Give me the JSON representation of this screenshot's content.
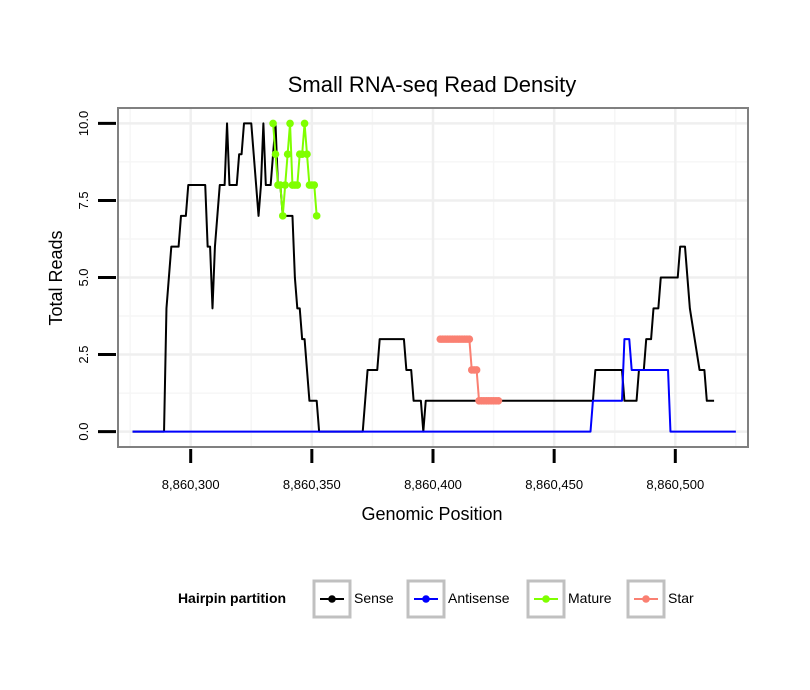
{
  "chart_data": {
    "type": "line",
    "title": "Small RNA-seq Read Density",
    "xlabel": "Genomic Position",
    "ylabel": "Total Reads",
    "xlim": [
      8860270,
      8860530
    ],
    "ylim": [
      -0.5,
      10.5
    ],
    "x_ticks": [
      8860300,
      8860350,
      8860400,
      8860450,
      8860500
    ],
    "x_tick_labels": [
      "8,860,300",
      "8,860,350",
      "8,860,400",
      "8,860,450",
      "8,860,500"
    ],
    "y_ticks": [
      0,
      2.5,
      5,
      7.5,
      10
    ],
    "y_tick_labels": [
      "0.0",
      "2.5",
      "5.0",
      "7.5",
      "10.0"
    ],
    "grid": true,
    "legend": {
      "title": "Hairpin partition",
      "position": "bottom",
      "entries": [
        "Sense",
        "Antisense",
        "Mature",
        "Star"
      ]
    },
    "series": [
      {
        "name": "Sense",
        "color": "#000000",
        "show_points": false,
        "points": [
          [
            8860276,
            0
          ],
          [
            8860289,
            0
          ],
          [
            8860290,
            4
          ],
          [
            8860291,
            5
          ],
          [
            8860292,
            6
          ],
          [
            8860295,
            6
          ],
          [
            8860296,
            7
          ],
          [
            8860298,
            7
          ],
          [
            8860299,
            8
          ],
          [
            8860306,
            8
          ],
          [
            8860307,
            6
          ],
          [
            8860308,
            6
          ],
          [
            8860309,
            4
          ],
          [
            8860310,
            6
          ],
          [
            8860311,
            7
          ],
          [
            8860312,
            8
          ],
          [
            8860314,
            8
          ],
          [
            8860315,
            10
          ],
          [
            8860316,
            8
          ],
          [
            8860319,
            8
          ],
          [
            8860320,
            9
          ],
          [
            8860321,
            9
          ],
          [
            8860322,
            10
          ],
          [
            8860325,
            10
          ],
          [
            8860326,
            9
          ],
          [
            8860327,
            8
          ],
          [
            8860328,
            7
          ],
          [
            8860329,
            8
          ],
          [
            8860330,
            10
          ],
          [
            8860331,
            8
          ],
          [
            8860333,
            8
          ],
          [
            8860334,
            9
          ],
          [
            8860335,
            10
          ],
          [
            8860336,
            8
          ],
          [
            8860337,
            8
          ],
          [
            8860338,
            7
          ],
          [
            8860342,
            7
          ],
          [
            8860343,
            5
          ],
          [
            8860344,
            4
          ],
          [
            8860345,
            4
          ],
          [
            8860346,
            3
          ],
          [
            8860347,
            3
          ],
          [
            8860348,
            2
          ],
          [
            8860349,
            1
          ],
          [
            8860352,
            1
          ],
          [
            8860353,
            0
          ],
          [
            8860371,
            0
          ],
          [
            8860372,
            1
          ],
          [
            8860373,
            2
          ],
          [
            8860377,
            2
          ],
          [
            8860378,
            3
          ],
          [
            8860388,
            3
          ],
          [
            8860389,
            2
          ],
          [
            8860391,
            2
          ],
          [
            8860392,
            1
          ],
          [
            8860395,
            1
          ],
          [
            8860396,
            0
          ],
          [
            8860397,
            1
          ],
          [
            8860466,
            1
          ],
          [
            8860467,
            2
          ],
          [
            8860478,
            2
          ],
          [
            8860479,
            1
          ],
          [
            8860484,
            1
          ],
          [
            8860485,
            2
          ],
          [
            8860487,
            2
          ],
          [
            8860488,
            3
          ],
          [
            8860490,
            3
          ],
          [
            8860491,
            4
          ],
          [
            8860493,
            4
          ],
          [
            8860494,
            5
          ],
          [
            8860501,
            5
          ],
          [
            8860502,
            6
          ],
          [
            8860504,
            6
          ],
          [
            8860505,
            5
          ],
          [
            8860506,
            4
          ],
          [
            8860508,
            3
          ],
          [
            8860510,
            2
          ],
          [
            8860512,
            2
          ],
          [
            8860513,
            1
          ],
          [
            8860516,
            1
          ]
        ]
      },
      {
        "name": "Antisense",
        "color": "#0000ff",
        "show_points": false,
        "points": [
          [
            8860276,
            0
          ],
          [
            8860465,
            0
          ],
          [
            8860466,
            1
          ],
          [
            8860478,
            1
          ],
          [
            8860479,
            3
          ],
          [
            8860481,
            3
          ],
          [
            8860482,
            2
          ],
          [
            8860497,
            2
          ],
          [
            8860498,
            0
          ],
          [
            8860525,
            0
          ]
        ]
      },
      {
        "name": "Mature",
        "color": "#7fff00",
        "show_points": true,
        "points": [
          [
            8860334,
            10
          ],
          [
            8860335,
            9
          ],
          [
            8860336,
            8
          ],
          [
            8860337,
            8
          ],
          [
            8860338,
            7
          ],
          [
            8860339,
            8
          ],
          [
            8860340,
            9
          ],
          [
            8860341,
            10
          ],
          [
            8860342,
            8
          ],
          [
            8860343,
            8
          ],
          [
            8860344,
            8
          ],
          [
            8860345,
            9
          ],
          [
            8860346,
            9
          ],
          [
            8860347,
            10
          ],
          [
            8860348,
            9
          ],
          [
            8860349,
            8
          ],
          [
            8860350,
            8
          ],
          [
            8860351,
            8
          ],
          [
            8860352,
            7
          ]
        ]
      },
      {
        "name": "Star",
        "color": "#fa8072",
        "show_points": true,
        "points": [
          [
            8860403,
            3
          ],
          [
            8860404,
            3
          ],
          [
            8860405,
            3
          ],
          [
            8860406,
            3
          ],
          [
            8860407,
            3
          ],
          [
            8860408,
            3
          ],
          [
            8860409,
            3
          ],
          [
            8860410,
            3
          ],
          [
            8860411,
            3
          ],
          [
            8860412,
            3
          ],
          [
            8860413,
            3
          ],
          [
            8860414,
            3
          ],
          [
            8860415,
            3
          ],
          [
            8860416,
            2
          ],
          [
            8860417,
            2
          ],
          [
            8860418,
            2
          ],
          [
            8860419,
            1
          ],
          [
            8860420,
            1
          ],
          [
            8860421,
            1
          ],
          [
            8860422,
            1
          ],
          [
            8860423,
            1
          ],
          [
            8860424,
            1
          ],
          [
            8860425,
            1
          ],
          [
            8860426,
            1
          ],
          [
            8860427,
            1
          ]
        ]
      }
    ]
  }
}
